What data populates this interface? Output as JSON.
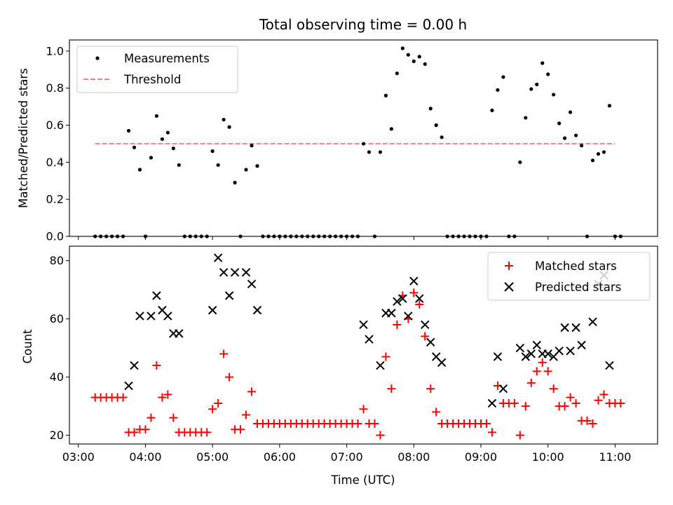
{
  "chart_data": [
    {
      "type": "scatter",
      "title": "Total observing time = 0.00 h",
      "xlabel": "",
      "ylabel": "Matched/Predicted stars",
      "xlim": [
        "02:52",
        "11:38"
      ],
      "ylim": [
        0,
        1.06
      ],
      "yticks": [
        "0.0",
        "0.2",
        "0.4",
        "0.6",
        "0.8",
        "1.0"
      ],
      "legend": {
        "position": "top-left",
        "entries": [
          "Measurements",
          "Threshold"
        ]
      },
      "threshold": {
        "name": "Threshold",
        "value": 0.5,
        "x_range": [
          "03:15",
          "11:00"
        ],
        "color": "#f08080"
      },
      "series": [
        {
          "name": "Measurements",
          "color": "#000000",
          "points": [
            [
              "03:15",
              0
            ],
            [
              "03:20",
              0
            ],
            [
              "03:25",
              0
            ],
            [
              "03:30",
              0
            ],
            [
              "03:35",
              0
            ],
            [
              "03:40",
              0
            ],
            [
              "03:45",
              0.57
            ],
            [
              "03:50",
              0.48
            ],
            [
              "03:55",
              0.36
            ],
            [
              "04:00",
              0
            ],
            [
              "04:05",
              0.425
            ],
            [
              "04:10",
              0.65
            ],
            [
              "04:15",
              0.525
            ],
            [
              "04:20",
              0.56
            ],
            [
              "04:25",
              0.475
            ],
            [
              "04:30",
              0.385
            ],
            [
              "04:35",
              0
            ],
            [
              "04:40",
              0
            ],
            [
              "04:45",
              0
            ],
            [
              "04:50",
              0
            ],
            [
              "04:55",
              0
            ],
            [
              "05:00",
              0.46
            ],
            [
              "05:05",
              0.385
            ],
            [
              "05:10",
              0.63
            ],
            [
              "05:15",
              0.59
            ],
            [
              "05:20",
              0.29
            ],
            [
              "05:25",
              0
            ],
            [
              "05:30",
              0.36
            ],
            [
              "05:35",
              0.49
            ],
            [
              "05:40",
              0.38
            ],
            [
              "05:45",
              0
            ],
            [
              "05:50",
              0
            ],
            [
              "05:55",
              0
            ],
            [
              "06:00",
              0
            ],
            [
              "06:05",
              0
            ],
            [
              "06:10",
              0
            ],
            [
              "06:15",
              0
            ],
            [
              "06:20",
              0
            ],
            [
              "06:25",
              0
            ],
            [
              "06:30",
              0
            ],
            [
              "06:35",
              0
            ],
            [
              "06:40",
              0
            ],
            [
              "06:45",
              0
            ],
            [
              "06:50",
              0
            ],
            [
              "06:55",
              0
            ],
            [
              "07:00",
              0
            ],
            [
              "07:05",
              0
            ],
            [
              "07:10",
              0
            ],
            [
              "07:15",
              0.5
            ],
            [
              "07:20",
              0.455
            ],
            [
              "07:25",
              0
            ],
            [
              "07:30",
              0.455
            ],
            [
              "07:35",
              0.76
            ],
            [
              "07:40",
              0.58
            ],
            [
              "07:45",
              0.88
            ],
            [
              "07:50",
              1.015
            ],
            [
              "07:55",
              0.98
            ],
            [
              "08:00",
              0.945
            ],
            [
              "08:05",
              0.97
            ],
            [
              "08:10",
              0.93
            ],
            [
              "08:15",
              0.69
            ],
            [
              "08:20",
              0.6
            ],
            [
              "08:25",
              0.535
            ],
            [
              "08:30",
              0
            ],
            [
              "08:35",
              0
            ],
            [
              "08:40",
              0
            ],
            [
              "08:45",
              0
            ],
            [
              "08:50",
              0
            ],
            [
              "08:55",
              0
            ],
            [
              "09:00",
              0
            ],
            [
              "09:05",
              0
            ],
            [
              "09:10",
              0.68
            ],
            [
              "09:15",
              0.79
            ],
            [
              "09:20",
              0.86
            ],
            [
              "09:25",
              0
            ],
            [
              "09:30",
              0
            ],
            [
              "09:35",
              0.4
            ],
            [
              "09:40",
              0.64
            ],
            [
              "09:45",
              0.795
            ],
            [
              "09:50",
              0.82
            ],
            [
              "09:55",
              0.935
            ],
            [
              "10:00",
              0.875
            ],
            [
              "10:05",
              0.765
            ],
            [
              "10:10",
              0.61
            ],
            [
              "10:15",
              0.53
            ],
            [
              "10:20",
              0.67
            ],
            [
              "10:25",
              0.545
            ],
            [
              "10:30",
              0.49
            ],
            [
              "10:35",
              0
            ],
            [
              "10:40",
              0.41
            ],
            [
              "10:45",
              0.445
            ],
            [
              "10:50",
              0.455
            ],
            [
              "10:55",
              0.705
            ],
            [
              "11:00",
              0
            ],
            [
              "11:05",
              0
            ]
          ]
        }
      ]
    },
    {
      "type": "scatter",
      "title": "",
      "xlabel": "Time (UTC)",
      "ylabel": "Count",
      "xlim": [
        "02:52",
        "11:38"
      ],
      "ylim": [
        17,
        85
      ],
      "xticks": [
        "03:00",
        "04:00",
        "05:00",
        "06:00",
        "07:00",
        "08:00",
        "09:00",
        "10:00",
        "11:00"
      ],
      "yticks": [
        "20",
        "40",
        "60",
        "80"
      ],
      "legend": {
        "position": "top-right",
        "entries": [
          "Matched stars",
          "Predicted stars"
        ]
      },
      "series": [
        {
          "name": "Matched stars",
          "marker": "plus",
          "color": "#ff0000",
          "points": [
            [
              "03:15",
              33
            ],
            [
              "03:20",
              33
            ],
            [
              "03:25",
              33
            ],
            [
              "03:30",
              33
            ],
            [
              "03:35",
              33
            ],
            [
              "03:40",
              33
            ],
            [
              "03:45",
              21
            ],
            [
              "03:50",
              21
            ],
            [
              "03:55",
              22
            ],
            [
              "04:00",
              22
            ],
            [
              "04:05",
              26
            ],
            [
              "04:10",
              44
            ],
            [
              "04:15",
              33
            ],
            [
              "04:20",
              34
            ],
            [
              "04:25",
              26
            ],
            [
              "04:30",
              21
            ],
            [
              "04:35",
              21
            ],
            [
              "04:40",
              21
            ],
            [
              "04:45",
              21
            ],
            [
              "04:50",
              21
            ],
            [
              "04:55",
              21
            ],
            [
              "05:00",
              29
            ],
            [
              "05:05",
              31
            ],
            [
              "05:10",
              48
            ],
            [
              "05:15",
              40
            ],
            [
              "05:20",
              22
            ],
            [
              "05:25",
              22
            ],
            [
              "05:30",
              27
            ],
            [
              "05:35",
              35
            ],
            [
              "05:40",
              24
            ],
            [
              "05:45",
              24
            ],
            [
              "05:50",
              24
            ],
            [
              "05:55",
              24
            ],
            [
              "06:00",
              24
            ],
            [
              "06:05",
              24
            ],
            [
              "06:10",
              24
            ],
            [
              "06:15",
              24
            ],
            [
              "06:20",
              24
            ],
            [
              "06:25",
              24
            ],
            [
              "06:30",
              24
            ],
            [
              "06:35",
              24
            ],
            [
              "06:40",
              24
            ],
            [
              "06:45",
              24
            ],
            [
              "06:50",
              24
            ],
            [
              "06:55",
              24
            ],
            [
              "07:00",
              24
            ],
            [
              "07:05",
              24
            ],
            [
              "07:10",
              24
            ],
            [
              "07:15",
              29
            ],
            [
              "07:20",
              24
            ],
            [
              "07:25",
              24
            ],
            [
              "07:30",
              20
            ],
            [
              "07:35",
              47
            ],
            [
              "07:40",
              36
            ],
            [
              "07:45",
              58
            ],
            [
              "07:50",
              68
            ],
            [
              "07:55",
              60
            ],
            [
              "08:00",
              69
            ],
            [
              "08:05",
              65
            ],
            [
              "08:10",
              54
            ],
            [
              "08:15",
              36
            ],
            [
              "08:20",
              28
            ],
            [
              "08:25",
              24
            ],
            [
              "08:30",
              24
            ],
            [
              "08:35",
              24
            ],
            [
              "08:40",
              24
            ],
            [
              "08:45",
              24
            ],
            [
              "08:50",
              24
            ],
            [
              "08:55",
              24
            ],
            [
              "09:00",
              24
            ],
            [
              "09:05",
              24
            ],
            [
              "09:10",
              21
            ],
            [
              "09:15",
              37
            ],
            [
              "09:20",
              31
            ],
            [
              "09:25",
              31
            ],
            [
              "09:30",
              31
            ],
            [
              "09:35",
              20
            ],
            [
              "09:40",
              30
            ],
            [
              "09:45",
              38
            ],
            [
              "09:50",
              42
            ],
            [
              "09:55",
              45
            ],
            [
              "10:00",
              42
            ],
            [
              "10:05",
              36
            ],
            [
              "10:10",
              30
            ],
            [
              "10:15",
              30
            ],
            [
              "10:20",
              33
            ],
            [
              "10:25",
              31
            ],
            [
              "10:30",
              25
            ],
            [
              "10:35",
              25
            ],
            [
              "10:40",
              24
            ],
            [
              "10:45",
              32
            ],
            [
              "10:50",
              34
            ],
            [
              "10:55",
              31
            ],
            [
              "11:00",
              31
            ],
            [
              "11:05",
              31
            ]
          ]
        },
        {
          "name": "Predicted stars",
          "marker": "x",
          "color": "#000000",
          "points": [
            [
              "03:45",
              37
            ],
            [
              "03:50",
              44
            ],
            [
              "03:55",
              61
            ],
            [
              "04:05",
              61
            ],
            [
              "04:10",
              68
            ],
            [
              "04:15",
              63
            ],
            [
              "04:20",
              61
            ],
            [
              "04:25",
              55
            ],
            [
              "04:30",
              55
            ],
            [
              "05:00",
              63
            ],
            [
              "05:05",
              81
            ],
            [
              "05:10",
              76
            ],
            [
              "05:15",
              68
            ],
            [
              "05:20",
              76
            ],
            [
              "05:30",
              76
            ],
            [
              "05:35",
              72
            ],
            [
              "05:40",
              63
            ],
            [
              "07:15",
              58
            ],
            [
              "07:20",
              53
            ],
            [
              "07:30",
              44
            ],
            [
              "07:35",
              62
            ],
            [
              "07:40",
              62
            ],
            [
              "07:45",
              66
            ],
            [
              "07:50",
              67
            ],
            [
              "07:55",
              61
            ],
            [
              "08:00",
              73
            ],
            [
              "08:05",
              67
            ],
            [
              "08:10",
              58
            ],
            [
              "08:15",
              52
            ],
            [
              "08:20",
              47
            ],
            [
              "08:25",
              45
            ],
            [
              "09:10",
              31
            ],
            [
              "09:15",
              47
            ],
            [
              "09:20",
              36
            ],
            [
              "09:35",
              50
            ],
            [
              "09:40",
              47
            ],
            [
              "09:45",
              48
            ],
            [
              "09:50",
              51
            ],
            [
              "09:55",
              48
            ],
            [
              "10:00",
              48
            ],
            [
              "10:05",
              47
            ],
            [
              "10:10",
              49
            ],
            [
              "10:15",
              57
            ],
            [
              "10:20",
              49
            ],
            [
              "10:25",
              57
            ],
            [
              "10:30",
              51
            ],
            [
              "10:40",
              59
            ],
            [
              "10:45",
              72
            ],
            [
              "10:50",
              75
            ],
            [
              "10:55",
              44
            ]
          ]
        }
      ]
    }
  ]
}
